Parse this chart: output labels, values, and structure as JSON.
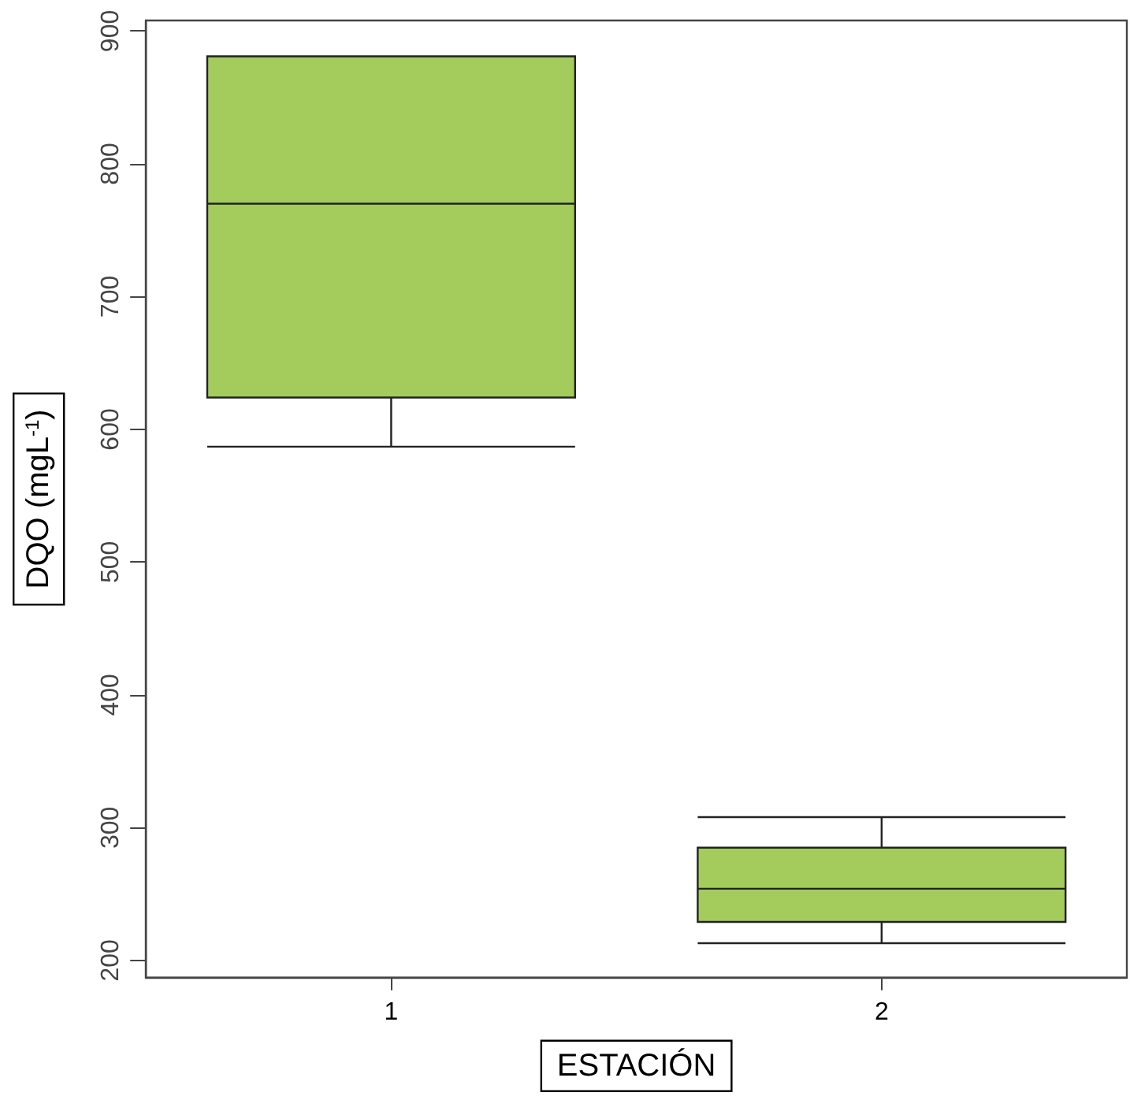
{
  "chart_data": {
    "type": "box",
    "xlabel": "ESTACIÓN",
    "ylabel": "DQO (mgL$^{-1}$)",
    "categories": [
      "1",
      "2"
    ],
    "color": "#a3cc5c",
    "boxes": [
      {
        "low": 587,
        "q1": 624,
        "median": 770,
        "q3": 881,
        "high": 881
      },
      {
        "low": 213,
        "q1": 229,
        "median": 254,
        "q3": 285,
        "high": 308
      }
    ],
    "ylim": [
      187,
      908
    ],
    "yticks": [
      200,
      300,
      400,
      500,
      600,
      700,
      800,
      900
    ]
  }
}
